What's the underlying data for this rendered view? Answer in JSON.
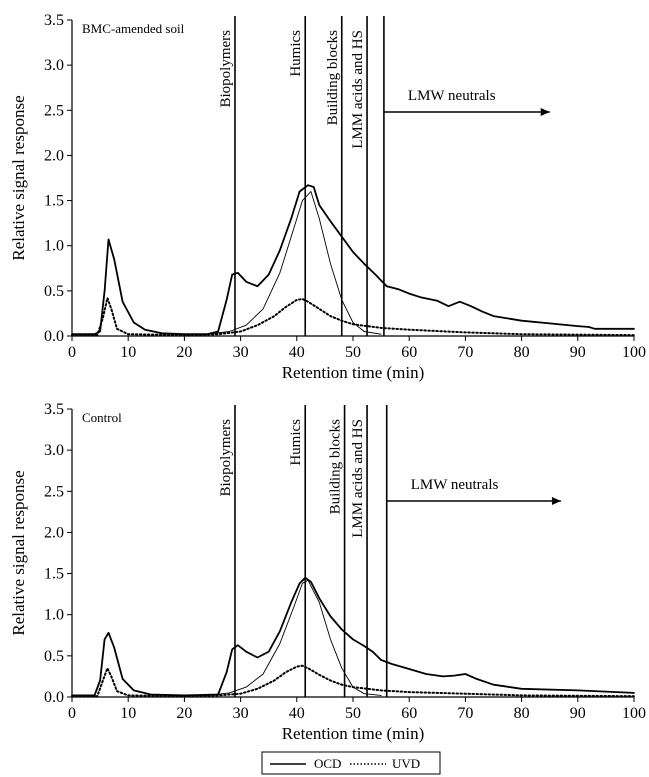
{
  "legend": {
    "entries": [
      {
        "label": "OCD",
        "style": "solid"
      },
      {
        "label": "UVD",
        "style": "dotted"
      }
    ]
  },
  "chart_data": [
    {
      "type": "line",
      "panel_label": "BMC-amended soil",
      "xlabel": "Retention time (min)",
      "ylabel": "Relative signal response",
      "xlim": [
        0,
        100
      ],
      "ylim": [
        0,
        3.5
      ],
      "x_ticks": [
        "0",
        "10",
        "20",
        "30",
        "40",
        "50",
        "60",
        "70",
        "80",
        "90",
        "100"
      ],
      "y_ticks": [
        "0.0",
        "0.5",
        "1.0",
        "1.5",
        "2.0",
        "2.5",
        "3.0",
        "3.5"
      ],
      "grid": false,
      "fraction_markers": [
        {
          "label": "Biopolymers",
          "x": 29
        },
        {
          "label": "Humics",
          "x": 41.5
        },
        {
          "label": "Building blocks",
          "x": 48
        },
        {
          "label": "LMM acids and HS",
          "x": 52.5
        },
        {
          "label": "LMW neutrals",
          "x": 55.5,
          "arrow_to": 85
        }
      ],
      "series": [
        {
          "name": "OCD",
          "style": "solid",
          "points": [
            [
              0,
              0.02
            ],
            [
              4,
              0.02
            ],
            [
              5,
              0.05
            ],
            [
              5.8,
              0.5
            ],
            [
              6.5,
              1.07
            ],
            [
              7.5,
              0.85
            ],
            [
              9,
              0.38
            ],
            [
              11,
              0.15
            ],
            [
              13,
              0.07
            ],
            [
              16,
              0.03
            ],
            [
              20,
              0.02
            ],
            [
              24,
              0.02
            ],
            [
              26,
              0.05
            ],
            [
              27.5,
              0.4
            ],
            [
              28.5,
              0.68
            ],
            [
              29.5,
              0.7
            ],
            [
              31,
              0.6
            ],
            [
              33,
              0.55
            ],
            [
              35,
              0.68
            ],
            [
              37,
              0.95
            ],
            [
              39,
              1.3
            ],
            [
              40.5,
              1.6
            ],
            [
              42,
              1.67
            ],
            [
              43,
              1.65
            ],
            [
              44,
              1.45
            ],
            [
              46,
              1.27
            ],
            [
              48,
              1.1
            ],
            [
              50,
              0.93
            ],
            [
              52,
              0.8
            ],
            [
              54,
              0.68
            ],
            [
              56,
              0.55
            ],
            [
              58,
              0.52
            ],
            [
              60,
              0.47
            ],
            [
              62,
              0.43
            ],
            [
              65,
              0.39
            ],
            [
              67,
              0.33
            ],
            [
              69,
              0.38
            ],
            [
              71,
              0.33
            ],
            [
              73,
              0.27
            ],
            [
              75,
              0.22
            ],
            [
              80,
              0.17
            ],
            [
              85,
              0.14
            ],
            [
              90,
              0.11
            ],
            [
              92,
              0.1
            ],
            [
              93,
              0.08
            ],
            [
              100,
              0.08
            ]
          ]
        },
        {
          "name": "OCD (peak fit)",
          "style": "thin",
          "points": [
            [
              24,
              0.02
            ],
            [
              28,
              0.05
            ],
            [
              31,
              0.12
            ],
            [
              34,
              0.3
            ],
            [
              37,
              0.7
            ],
            [
              39.5,
              1.2
            ],
            [
              41,
              1.5
            ],
            [
              42.5,
              1.6
            ],
            [
              44,
              1.3
            ],
            [
              46,
              0.8
            ],
            [
              48,
              0.4
            ],
            [
              50,
              0.15
            ],
            [
              52,
              0.05
            ],
            [
              55,
              0.02
            ]
          ]
        },
        {
          "name": "UVD",
          "style": "dotted",
          "points": [
            [
              0,
              0.01
            ],
            [
              4.5,
              0.01
            ],
            [
              5.5,
              0.2
            ],
            [
              6.3,
              0.42
            ],
            [
              7,
              0.3
            ],
            [
              8,
              0.08
            ],
            [
              10,
              0.02
            ],
            [
              20,
              0.01
            ],
            [
              26,
              0.02
            ],
            [
              30,
              0.05
            ],
            [
              33,
              0.12
            ],
            [
              36,
              0.22
            ],
            [
              38,
              0.32
            ],
            [
              40,
              0.4
            ],
            [
              41,
              0.41
            ],
            [
              42,
              0.38
            ],
            [
              44,
              0.3
            ],
            [
              46,
              0.22
            ],
            [
              48,
              0.17
            ],
            [
              50,
              0.13
            ],
            [
              55,
              0.09
            ],
            [
              60,
              0.07
            ],
            [
              70,
              0.04
            ],
            [
              80,
              0.02
            ],
            [
              100,
              0.01
            ]
          ]
        }
      ]
    },
    {
      "type": "line",
      "panel_label": "Control",
      "xlabel": "Retention time (min)",
      "ylabel": "Relative signal response",
      "xlim": [
        0,
        100
      ],
      "ylim": [
        0,
        3.5
      ],
      "x_ticks": [
        "0",
        "10",
        "20",
        "30",
        "40",
        "50",
        "60",
        "70",
        "80",
        "90",
        "100"
      ],
      "y_ticks": [
        "0.0",
        "0.5",
        "1.0",
        "1.5",
        "2.0",
        "2.5",
        "3.0",
        "3.5"
      ],
      "grid": false,
      "fraction_markers": [
        {
          "label": "Biopolymers",
          "x": 29
        },
        {
          "label": "Humics",
          "x": 41.5
        },
        {
          "label": "Building blocks",
          "x": 48.5
        },
        {
          "label": "LMM acids and HS",
          "x": 52.5
        },
        {
          "label": "LMW neutrals",
          "x": 56,
          "arrow_to": 87
        }
      ],
      "series": [
        {
          "name": "OCD",
          "style": "solid",
          "points": [
            [
              0,
              0.02
            ],
            [
              4,
              0.02
            ],
            [
              5,
              0.2
            ],
            [
              5.8,
              0.7
            ],
            [
              6.5,
              0.78
            ],
            [
              7.5,
              0.6
            ],
            [
              9,
              0.22
            ],
            [
              11,
              0.08
            ],
            [
              14,
              0.03
            ],
            [
              20,
              0.02
            ],
            [
              26,
              0.03
            ],
            [
              27.5,
              0.3
            ],
            [
              28.5,
              0.58
            ],
            [
              29.5,
              0.63
            ],
            [
              31,
              0.55
            ],
            [
              33,
              0.48
            ],
            [
              35,
              0.55
            ],
            [
              37,
              0.8
            ],
            [
              39,
              1.15
            ],
            [
              40.5,
              1.38
            ],
            [
              41.5,
              1.45
            ],
            [
              42.5,
              1.4
            ],
            [
              44,
              1.2
            ],
            [
              46,
              0.98
            ],
            [
              48,
              0.82
            ],
            [
              50,
              0.7
            ],
            [
              52,
              0.62
            ],
            [
              53.5,
              0.55
            ],
            [
              55,
              0.45
            ],
            [
              57,
              0.4
            ],
            [
              60,
              0.34
            ],
            [
              63,
              0.28
            ],
            [
              66,
              0.25
            ],
            [
              68,
              0.26
            ],
            [
              70,
              0.28
            ],
            [
              72,
              0.22
            ],
            [
              75,
              0.15
            ],
            [
              80,
              0.1
            ],
            [
              90,
              0.08
            ],
            [
              100,
              0.05
            ]
          ]
        },
        {
          "name": "OCD (peak fit)",
          "style": "thin",
          "points": [
            [
              24,
              0.02
            ],
            [
              28,
              0.05
            ],
            [
              31,
              0.12
            ],
            [
              34,
              0.28
            ],
            [
              37,
              0.65
            ],
            [
              39.5,
              1.1
            ],
            [
              41,
              1.38
            ],
            [
              42,
              1.42
            ],
            [
              44,
              1.15
            ],
            [
              46,
              0.7
            ],
            [
              48,
              0.35
            ],
            [
              50,
              0.12
            ],
            [
              52,
              0.04
            ],
            [
              55,
              0.02
            ]
          ]
        },
        {
          "name": "UVD",
          "style": "dotted",
          "points": [
            [
              0,
              0.01
            ],
            [
              4.5,
              0.01
            ],
            [
              5.5,
              0.2
            ],
            [
              6.3,
              0.35
            ],
            [
              7,
              0.25
            ],
            [
              8,
              0.07
            ],
            [
              10,
              0.02
            ],
            [
              20,
              0.01
            ],
            [
              26,
              0.02
            ],
            [
              30,
              0.04
            ],
            [
              33,
              0.1
            ],
            [
              36,
              0.2
            ],
            [
              38,
              0.3
            ],
            [
              40,
              0.37
            ],
            [
              41,
              0.38
            ],
            [
              42,
              0.35
            ],
            [
              44,
              0.27
            ],
            [
              46,
              0.2
            ],
            [
              48,
              0.15
            ],
            [
              50,
              0.12
            ],
            [
              55,
              0.08
            ],
            [
              60,
              0.06
            ],
            [
              70,
              0.04
            ],
            [
              80,
              0.02
            ],
            [
              100,
              0.01
            ]
          ]
        }
      ]
    }
  ]
}
